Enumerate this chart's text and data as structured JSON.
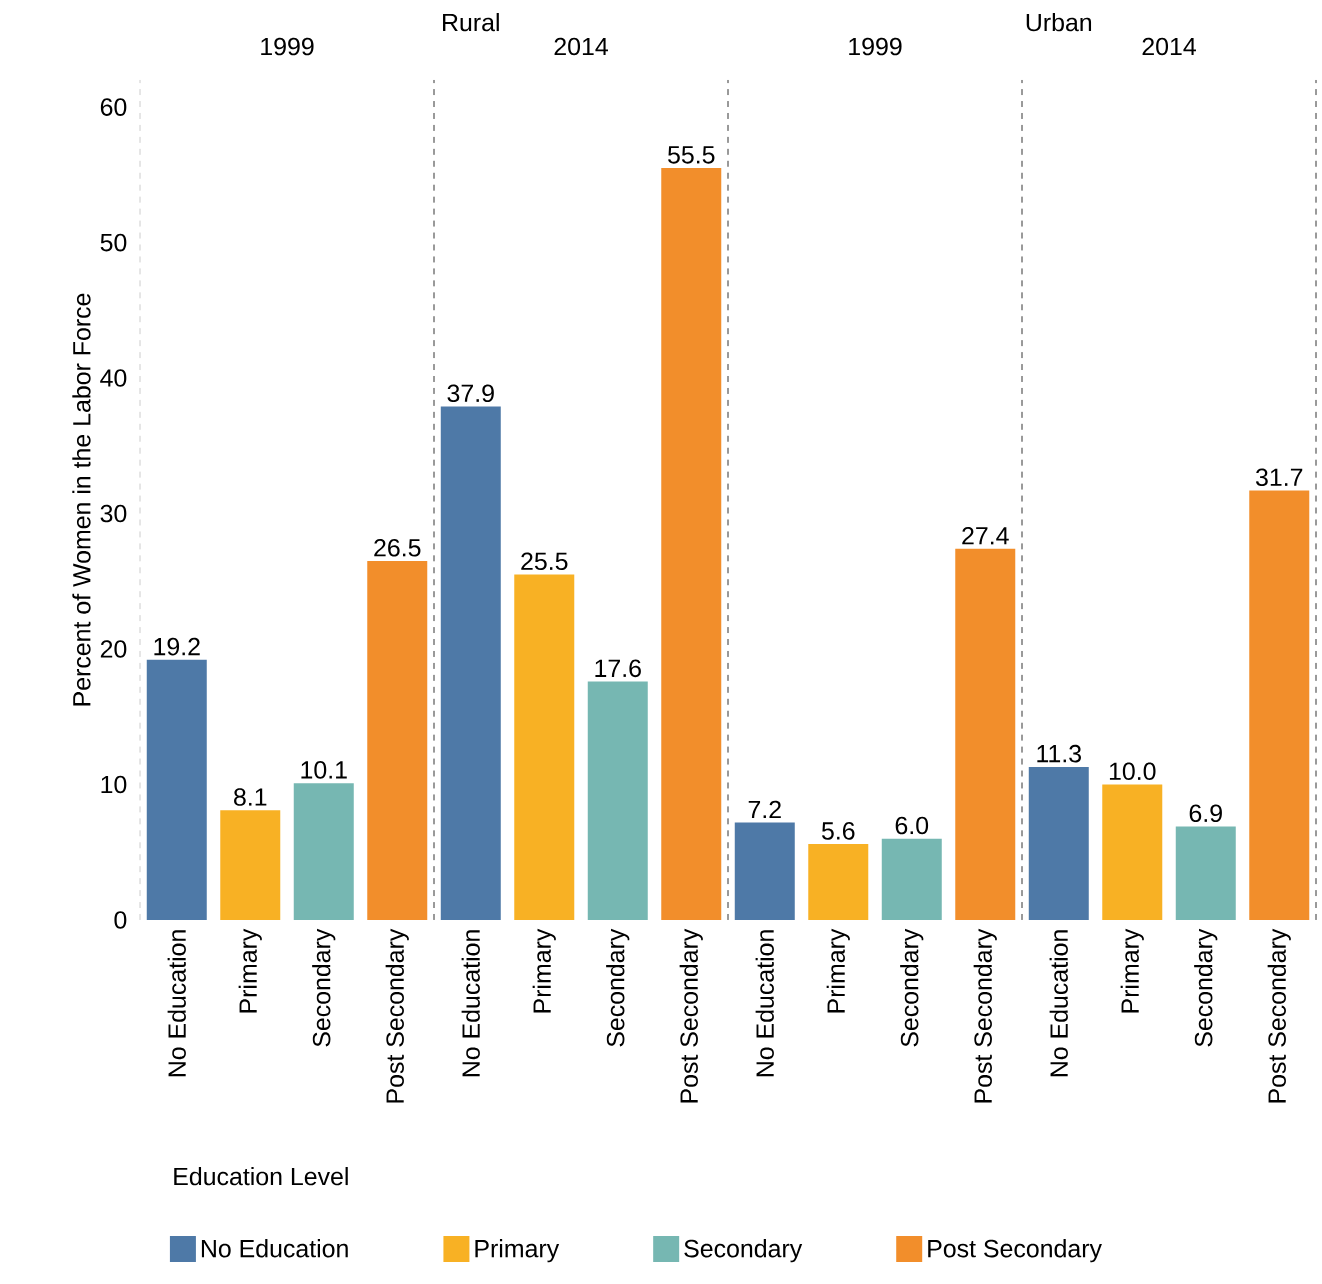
{
  "chart_data": [
    {
      "type": "bar",
      "title": "1999",
      "annotations": [
        "Rural"
      ],
      "ylabel": "Percent of Women in the Labor Force",
      "legend_title": "Education Level",
      "legend": "bottom",
      "categories": [
        "No Education",
        "Primary",
        "Secondary",
        "Post Secondary"
      ],
      "ylim": [
        0,
        62
      ],
      "yticks": [
        0,
        10,
        20,
        30,
        40,
        50,
        60
      ],
      "series": [
        {
          "name": "No Education",
          "color": "#4e79a7",
          "values": [
            19.2,
            null,
            null,
            null
          ],
          "value_labels": [
            "19.2",
            null,
            null,
            null
          ]
        },
        {
          "name": "Primary",
          "color": "#f8b124",
          "values": [
            null,
            8.1,
            null,
            null
          ],
          "value_labels": [
            null,
            "8.1",
            null,
            null
          ]
        },
        {
          "name": "Secondary",
          "color": "#76b7b2",
          "values": [
            null,
            null,
            10.1,
            null
          ],
          "value_labels": [
            null,
            null,
            "10.1",
            null
          ]
        },
        {
          "name": "Post Secondary",
          "color": "#f28e2b",
          "values": [
            null,
            null,
            null,
            26.5
          ],
          "value_labels": [
            null,
            null,
            null,
            "26.5"
          ]
        }
      ]
    },
    {
      "type": "bar",
      "title": "2014",
      "tick_labels": "x",
      "categories": [
        "No Education",
        "Primary",
        "Secondary",
        "Post Secondary"
      ],
      "ylim": [
        0,
        62
      ],
      "yticks": [
        0,
        10,
        20,
        30,
        40,
        50,
        60
      ],
      "series": [
        {
          "color": "#4e79a7",
          "values": [
            37.9,
            null,
            null,
            null
          ],
          "value_labels": [
            "37.9",
            null,
            null,
            null
          ]
        },
        {
          "color": "#f8b124",
          "values": [
            null,
            25.5,
            null,
            null
          ],
          "value_labels": [
            null,
            "25.5",
            null,
            null
          ]
        },
        {
          "color": "#76b7b2",
          "values": [
            null,
            null,
            17.6,
            null
          ],
          "value_labels": [
            null,
            null,
            "17.6",
            null
          ]
        },
        {
          "color": "#f28e2b",
          "values": [
            null,
            null,
            null,
            55.5
          ],
          "value_labels": [
            null,
            null,
            null,
            "55.5"
          ]
        }
      ]
    },
    {
      "type": "bar",
      "title": "1999",
      "annotations": [
        "Urban"
      ],
      "tick_labels": "x",
      "categories": [
        "No Education",
        "Primary",
        "Secondary",
        "Post Secondary"
      ],
      "ylim": [
        0,
        62
      ],
      "yticks": [
        0,
        10,
        20,
        30,
        40,
        50,
        60
      ],
      "series": [
        {
          "color": "#4e79a7",
          "values": [
            7.2,
            null,
            null,
            null
          ],
          "value_labels": [
            "7.2",
            null,
            null,
            null
          ]
        },
        {
          "color": "#f8b124",
          "values": [
            null,
            5.6,
            null,
            null
          ],
          "value_labels": [
            null,
            "5.6",
            null,
            null
          ]
        },
        {
          "color": "#76b7b2",
          "values": [
            null,
            null,
            6.0,
            null
          ],
          "value_labels": [
            null,
            null,
            "6.0",
            null
          ]
        },
        {
          "color": "#f28e2b",
          "values": [
            null,
            null,
            null,
            27.4
          ],
          "value_labels": [
            null,
            null,
            null,
            "27.4"
          ]
        }
      ]
    },
    {
      "type": "bar",
      "title": "2014",
      "tick_labels": "x",
      "categories": [
        "No Education",
        "Primary",
        "Secondary",
        "Post Secondary"
      ],
      "ylim": [
        0,
        62
      ],
      "yticks": [
        0,
        10,
        20,
        30,
        40,
        50,
        60
      ],
      "series": [
        {
          "color": "#4e79a7",
          "values": [
            11.3,
            null,
            null,
            null
          ],
          "value_labels": [
            "11.3",
            null,
            null,
            null
          ]
        },
        {
          "color": "#f8b124",
          "values": [
            null,
            10.0,
            null,
            null
          ],
          "value_labels": [
            null,
            "10.0",
            null,
            null
          ]
        },
        {
          "color": "#76b7b2",
          "values": [
            null,
            null,
            6.9,
            null
          ],
          "value_labels": [
            null,
            null,
            "6.9",
            null
          ]
        },
        {
          "color": "#f28e2b",
          "values": [
            null,
            null,
            null,
            31.7
          ],
          "value_labels": [
            null,
            null,
            null,
            "31.7"
          ]
        }
      ]
    }
  ]
}
